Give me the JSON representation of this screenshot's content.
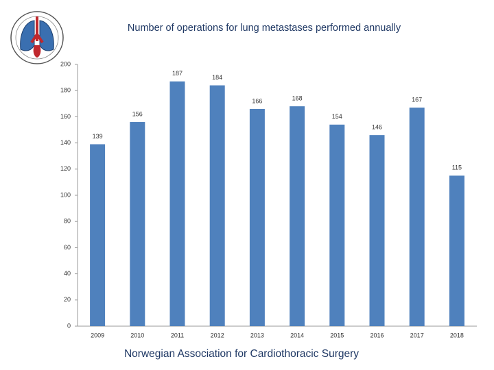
{
  "chart_data": {
    "type": "bar",
    "title": "Number of operations for lung metastases performed annually",
    "categories": [
      "2009",
      "2010",
      "2011",
      "2012",
      "2013",
      "2014",
      "2015",
      "2016",
      "2017",
      "2018"
    ],
    "values": [
      139,
      156,
      187,
      184,
      166,
      168,
      154,
      146,
      167,
      115
    ],
    "color": "#4f81bd",
    "ylim": [
      0,
      200
    ],
    "yticks": [
      0,
      20,
      40,
      60,
      80,
      100,
      120,
      140,
      160,
      180,
      200
    ],
    "grid": false
  },
  "footer": "Norwegian Association for Cardiothoracic Surgery"
}
